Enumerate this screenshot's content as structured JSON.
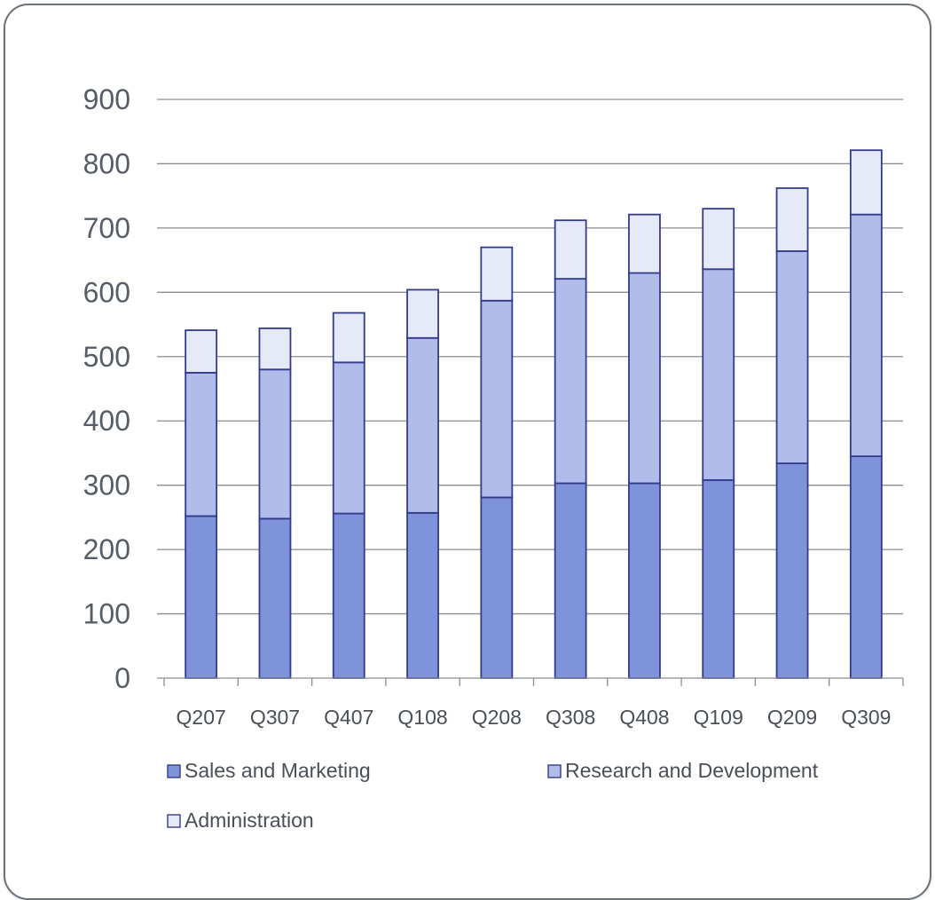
{
  "chart_data": {
    "type": "bar",
    "stacked": true,
    "categories": [
      "Q207",
      "Q307",
      "Q407",
      "Q108",
      "Q208",
      "Q308",
      "Q408",
      "Q109",
      "Q209",
      "Q309"
    ],
    "series": [
      {
        "name": "Sales and Marketing",
        "color": "#7f93db",
        "values": [
          252,
          248,
          256,
          257,
          281,
          303,
          303,
          308,
          334,
          345
        ]
      },
      {
        "name": "Research and Development",
        "color": "#b1bcea",
        "values": [
          223,
          232,
          235,
          272,
          306,
          318,
          327,
          328,
          330,
          376
        ]
      },
      {
        "name": "Administration",
        "color": "#e6e9f8",
        "values": [
          66,
          64,
          77,
          75,
          83,
          91,
          91,
          94,
          98,
          100
        ]
      }
    ],
    "ylim": [
      0,
      900
    ],
    "yticks": [
      0,
      100,
      200,
      300,
      400,
      500,
      600,
      700,
      800,
      900
    ],
    "grid": true,
    "legend_position": "bottom",
    "title": "",
    "xlabel": "",
    "ylabel": ""
  }
}
